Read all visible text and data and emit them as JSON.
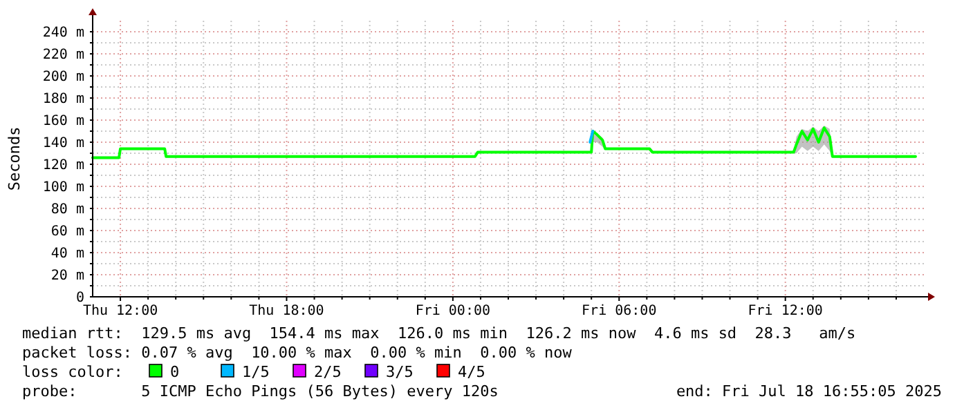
{
  "chart_data": {
    "type": "line",
    "ylabel": "Seconds",
    "x": [
      "2025-07-17T11:00",
      "2025-07-17T11:57",
      "2025-07-17T12:00",
      "2025-07-17T13:36",
      "2025-07-17T13:39",
      "2025-07-18T00:48",
      "2025-07-18T00:54",
      "2025-07-18T05:00",
      "2025-07-18T05:03",
      "2025-07-18T05:12",
      "2025-07-18T05:24",
      "2025-07-18T05:30",
      "2025-07-18T07:06",
      "2025-07-18T07:12",
      "2025-07-18T12:18",
      "2025-07-18T12:24",
      "2025-07-18T12:36",
      "2025-07-18T12:48",
      "2025-07-18T13:00",
      "2025-07-18T13:12",
      "2025-07-18T13:24",
      "2025-07-18T13:36",
      "2025-07-18T13:42",
      "2025-07-18T16:42"
    ],
    "series": [
      {
        "name": "0",
        "color": "#00ff00",
        "values": [
          126,
          126,
          134,
          134,
          127,
          127,
          131,
          131,
          150,
          147,
          142,
          134,
          134,
          131,
          131,
          138,
          150,
          142,
          152,
          140,
          153,
          145,
          127,
          127
        ],
        "lower": [
          125,
          125,
          133,
          133,
          126,
          126,
          130,
          130,
          140,
          140,
          136,
          133,
          133,
          130,
          130,
          130,
          136,
          132,
          136,
          132,
          138,
          132,
          126,
          126
        ],
        "upper": [
          127,
          127,
          135,
          135,
          128,
          128,
          132,
          132,
          150,
          148,
          144,
          135,
          135,
          132,
          132,
          145,
          152,
          150,
          154,
          150,
          155,
          152,
          128,
          128
        ]
      },
      {
        "name": "1/5",
        "color": "#00b8ff",
        "x": [
          "2025-07-18T04:57",
          "2025-07-18T05:03"
        ],
        "values": [
          140,
          150
        ]
      },
      {
        "name": "2/5",
        "color": "#e000ff",
        "values": [
          null,
          null,
          null,
          null,
          null,
          null,
          null,
          null,
          null,
          null,
          null,
          null,
          null,
          null,
          null,
          null,
          null,
          null,
          null,
          null,
          null,
          null,
          null,
          null
        ]
      },
      {
        "name": "3/5",
        "color": "#7000ff",
        "values": [
          null,
          null,
          null,
          null,
          null,
          null,
          null,
          null,
          null,
          null,
          null,
          null,
          null,
          null,
          null,
          null,
          null,
          null,
          null,
          null,
          null,
          null,
          null,
          null
        ]
      },
      {
        "name": "4/5",
        "color": "#ff0000",
        "values": [
          null,
          null,
          null,
          null,
          null,
          null,
          null,
          null,
          null,
          null,
          null,
          null,
          null,
          null,
          null,
          null,
          null,
          null,
          null,
          null,
          null,
          null,
          null,
          null
        ]
      }
    ],
    "xlim": [
      "2025-07-17T11:00",
      "2025-07-18T17:00"
    ],
    "xticks": [
      {
        "value": "2025-07-17T12:00",
        "label": "Thu 12:00"
      },
      {
        "value": "2025-07-17T13:00",
        "label": null
      },
      {
        "value": "2025-07-17T14:00",
        "label": null
      },
      {
        "value": "2025-07-17T15:00",
        "label": null
      },
      {
        "value": "2025-07-17T16:00",
        "label": null
      },
      {
        "value": "2025-07-17T17:00",
        "label": null
      },
      {
        "value": "2025-07-17T18:00",
        "label": "Thu 18:00"
      },
      {
        "value": "2025-07-17T19:00",
        "label": null
      },
      {
        "value": "2025-07-17T20:00",
        "label": null
      },
      {
        "value": "2025-07-17T21:00",
        "label": null
      },
      {
        "value": "2025-07-17T22:00",
        "label": null
      },
      {
        "value": "2025-07-17T23:00",
        "label": null
      },
      {
        "value": "2025-07-18T00:00",
        "label": "Fri 00:00"
      },
      {
        "value": "2025-07-18T01:00",
        "label": null
      },
      {
        "value": "2025-07-18T02:00",
        "label": null
      },
      {
        "value": "2025-07-18T03:00",
        "label": null
      },
      {
        "value": "2025-07-18T04:00",
        "label": null
      },
      {
        "value": "2025-07-18T05:00",
        "label": null
      },
      {
        "value": "2025-07-18T06:00",
        "label": "Fri 06:00"
      },
      {
        "value": "2025-07-18T07:00",
        "label": null
      },
      {
        "value": "2025-07-18T08:00",
        "label": null
      },
      {
        "value": "2025-07-18T09:00",
        "label": null
      },
      {
        "value": "2025-07-18T10:00",
        "label": null
      },
      {
        "value": "2025-07-18T11:00",
        "label": null
      },
      {
        "value": "2025-07-18T12:00",
        "label": "Fri 12:00"
      },
      {
        "value": "2025-07-18T13:00",
        "label": null
      },
      {
        "value": "2025-07-18T14:00",
        "label": null
      },
      {
        "value": "2025-07-18T15:00",
        "label": null
      },
      {
        "value": "2025-07-18T16:00",
        "label": null
      }
    ],
    "ylim": [
      0,
      250
    ],
    "yticks": [
      0,
      {
        "value": 10,
        "label": null
      },
      {
        "value": 20,
        "label": "20 m"
      },
      {
        "value": 30,
        "label": null
      },
      {
        "value": 40,
        "label": "40 m"
      },
      {
        "value": 50,
        "label": null
      },
      {
        "value": 60,
        "label": "60 m"
      },
      {
        "value": 70,
        "label": null
      },
      {
        "value": 80,
        "label": "80 m"
      },
      {
        "value": 90,
        "label": null
      },
      {
        "value": 100,
        "label": "100 m"
      },
      {
        "value": 110,
        "label": null
      },
      {
        "value": 120,
        "label": "120 m"
      },
      {
        "value": 130,
        "label": null
      },
      {
        "value": 140,
        "label": "140 m"
      },
      {
        "value": 150,
        "label": null
      },
      {
        "value": 160,
        "label": "160 m"
      },
      {
        "value": 170,
        "label": null
      },
      {
        "value": 180,
        "label": "180 m"
      },
      {
        "value": 190,
        "label": null
      },
      {
        "value": 200,
        "label": "200 m"
      },
      {
        "value": 210,
        "label": null
      },
      {
        "value": 220,
        "label": "220 m"
      },
      {
        "value": 230,
        "label": null
      },
      {
        "value": 240,
        "label": "240 m"
      }
    ],
    "grid": true,
    "legend": "bottom",
    "legend_title": "loss color:",
    "line_style": "solid",
    "marker": "none",
    "annotations": [
      "median rtt:  129.5 ms avg  154.4 ms max  126.0 ms min  126.2 ms now  4.6 ms sd  28.3   am/s",
      "packet loss: 0.07 % avg  10.00 % max  0.00 % min  0.00 % now",
      "probe:       5 ICMP Echo Pings (56 Bytes) every 120s",
      "end: Fri Jul 18 16:55:05 2025"
    ]
  }
}
